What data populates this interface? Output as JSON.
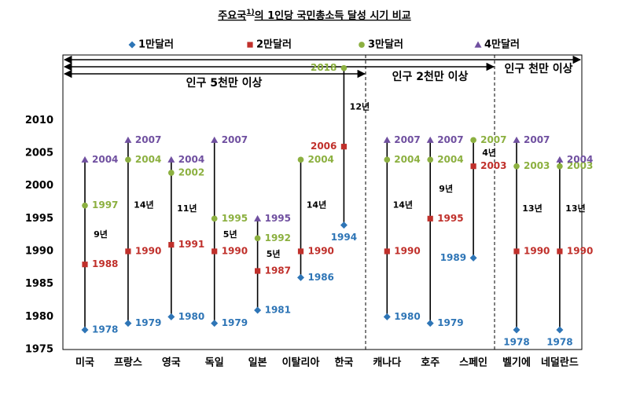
{
  "chart_data": {
    "type": "dot-range",
    "title": [
      "주요국",
      "1)",
      "의 1인당 국민총소득 달성 시기 비교"
    ],
    "categories": [
      "미국",
      "프랑스",
      "영국",
      "독일",
      "일본",
      "이탈리아",
      "한국",
      "캐나다",
      "호주",
      "스페인",
      "벨기에",
      "네덜란드"
    ],
    "series": [
      {
        "name": "1만달러",
        "color": "#2e75b6",
        "marker": "diamond",
        "values": [
          1978,
          1979,
          1980,
          1979,
          1981,
          1986,
          1994,
          1980,
          1979,
          1989,
          1978,
          1978
        ]
      },
      {
        "name": "2만달러",
        "color": "#c0302b",
        "marker": "square",
        "values": [
          1988,
          1990,
          1991,
          1990,
          1987,
          1990,
          2006,
          1990,
          1995,
          2003,
          1990,
          1990
        ]
      },
      {
        "name": "3만달러",
        "color": "#8cb040",
        "marker": "circle",
        "values": [
          1997,
          2004,
          2002,
          1995,
          1992,
          2004,
          2018,
          2004,
          2004,
          2007,
          2003,
          2003
        ]
      },
      {
        "name": "4만달러",
        "color": "#7050a0",
        "marker": "triangle",
        "values": [
          2004,
          2007,
          2004,
          2007,
          1995,
          null,
          null,
          2007,
          2007,
          null,
          2007,
          2004
        ]
      }
    ],
    "gap_labels": [
      "9년",
      "14년",
      "11년",
      "5년",
      "5년",
      "14년",
      "12년",
      "14년",
      "9년",
      "4년",
      "13년",
      "13년"
    ],
    "groups": [
      "인구 5천만 이상",
      "인구 2천만 이상",
      "인구 천만 이상"
    ],
    "ylim": [
      1975,
      2020
    ],
    "yticks": [
      1975,
      1980,
      1985,
      1990,
      1995,
      2000,
      2005,
      2010
    ]
  }
}
